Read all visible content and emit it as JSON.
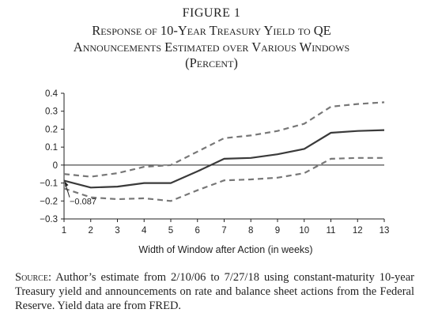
{
  "figure": {
    "number": "FIGURE 1",
    "title_lines": [
      "Response of 10-Year Treasury Yield to QE",
      "Announcements Estimated over Various Windows",
      "(Percent)"
    ]
  },
  "caption": {
    "source_label": "Source:",
    "text": "Author’s estimate from 2/10/06 to 7/27/18 using constant-maturity 10-year Treasury yield and announcements on rate and balance sheet actions from the Federal Reserve. Yield data are from FRED."
  },
  "chart_data": {
    "type": "line",
    "title": "",
    "xlabel": "Width of Window after Action (in weeks)",
    "ylabel": "",
    "x": [
      1,
      2,
      3,
      4,
      5,
      6,
      7,
      8,
      9,
      10,
      11,
      12,
      13
    ],
    "xlim": [
      1,
      13
    ],
    "ylim": [
      -0.3,
      0.4
    ],
    "x_ticks": [
      "1",
      "2",
      "3",
      "4",
      "5",
      "6",
      "7",
      "8",
      "9",
      "10",
      "11",
      "12",
      "13"
    ],
    "y_ticks": [
      {
        "value": 0.4,
        "label": "0.4"
      },
      {
        "value": 0.3,
        "label": "0.3"
      },
      {
        "value": 0.2,
        "label": "0.2"
      },
      {
        "value": 0.1,
        "label": "0.1"
      },
      {
        "value": 0,
        "label": "0"
      },
      {
        "value": -0.1,
        "label": "−0.1"
      },
      {
        "value": -0.2,
        "label": "−0.2"
      },
      {
        "value": -0.3,
        "label": "−0.3"
      }
    ],
    "zero_line": true,
    "grid": false,
    "series": [
      {
        "style": "solid",
        "color": "#3a3a3a",
        "values": [
          -0.087,
          -0.125,
          -0.12,
          -0.1,
          -0.1,
          -0.035,
          0.035,
          0.04,
          0.06,
          0.09,
          0.18,
          0.19,
          0.195
        ]
      },
      {
        "style": "dashed",
        "color": "#777777",
        "values": [
          -0.05,
          -0.065,
          -0.045,
          -0.01,
          0.0,
          0.075,
          0.15,
          0.165,
          0.19,
          0.23,
          0.325,
          0.34,
          0.35
        ]
      },
      {
        "style": "dashed",
        "color": "#777777",
        "values": [
          -0.13,
          -0.18,
          -0.19,
          -0.185,
          -0.2,
          -0.14,
          -0.085,
          -0.08,
          -0.07,
          -0.045,
          0.035,
          0.04,
          0.04
        ]
      }
    ],
    "annotations": [
      {
        "label": "−0.087",
        "x": 1,
        "y": -0.087
      }
    ]
  }
}
